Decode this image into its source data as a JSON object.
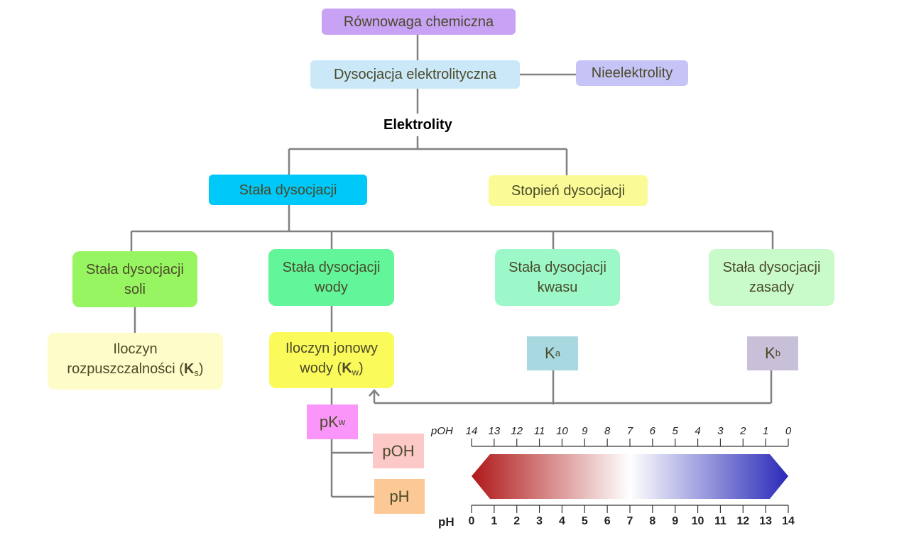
{
  "nodes": {
    "root": "Równowaga chemiczna",
    "dysocjacja": "Dysocjacja elektrolityczna",
    "nieelektrolity": "Nieelektrolity",
    "elektrolity": "Elektrolity",
    "stala": "Stała dysocjacji",
    "stopien": "Stopień dysocjacji",
    "soli": [
      "Stała dysocjacji",
      "soli"
    ],
    "wody": [
      "Stała dysocjacji",
      "wody"
    ],
    "kwasu": [
      "Stała dysocjacji",
      "kwasu"
    ],
    "zasady": [
      "Stała dysocjacji",
      "zasady"
    ],
    "iloczyn_rozp": [
      "Iloczyn",
      "rozpuszczalności (",
      "K",
      "s",
      ")"
    ],
    "iloczyn_jon": [
      "Iloczyn jonowy",
      "wody (",
      "K",
      "w",
      ")"
    ],
    "ka": [
      "K",
      "a"
    ],
    "kb": [
      "K",
      "b"
    ],
    "pkw": [
      "pK",
      "w"
    ],
    "poh": "pOH",
    "ph": "pH"
  },
  "scale": {
    "poh_label": "pOH",
    "ph_label": "pH",
    "poh_ticks": [
      "14",
      "13",
      "12",
      "11",
      "10",
      "9",
      "8",
      "7",
      "6",
      "5",
      "4",
      "3",
      "2",
      "1",
      "0"
    ],
    "ph_ticks": [
      "0",
      "1",
      "2",
      "3",
      "4",
      "5",
      "6",
      "7",
      "8",
      "9",
      "10",
      "11",
      "12",
      "13",
      "14"
    ],
    "colors": {
      "acid": "#b01818",
      "neutral": "#ffffff",
      "base": "#2a2ab8"
    }
  },
  "colors": {
    "line": "#808080"
  }
}
